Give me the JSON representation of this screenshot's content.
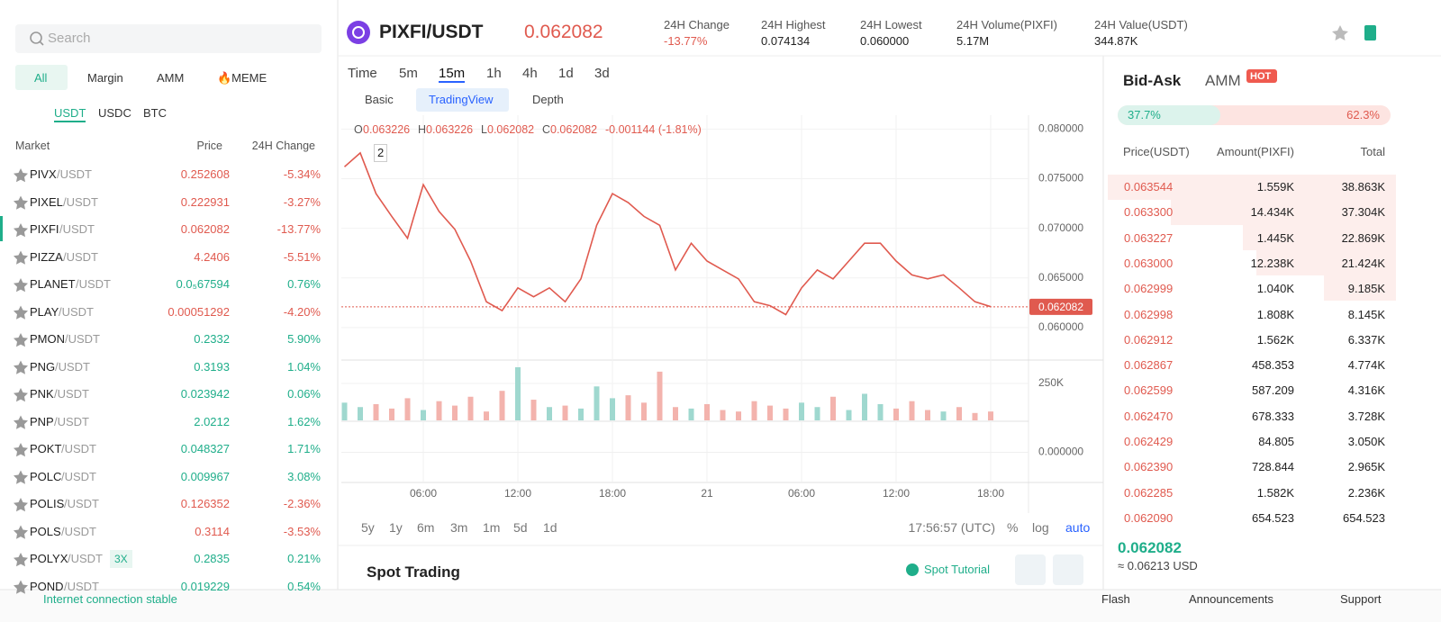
{
  "sidebar": {
    "search_placeholder": "Search",
    "tabs": [
      "All",
      "Margin",
      "AMM",
      "🔥MEME"
    ],
    "quote_tabs": [
      "USDT",
      "USDC",
      "BTC"
    ],
    "columns": [
      "Market",
      "Price",
      "24H Change"
    ],
    "rows": [
      {
        "base": "PIVX",
        "quote": "/USDT",
        "price": "0.252608",
        "change": "-5.34%"
      },
      {
        "base": "PIXEL",
        "quote": "/USDT",
        "price": "0.222931",
        "change": "-3.27%"
      },
      {
        "base": "PIXFI",
        "quote": "/USDT",
        "price": "0.062082",
        "change": "-13.77%"
      },
      {
        "base": "PIZZA",
        "quote": "/USDT",
        "price": "4.2406",
        "change": "-5.51%"
      },
      {
        "base": "PLANET",
        "quote": "/USDT",
        "price": "0.0₅67594",
        "change": "0.76%"
      },
      {
        "base": "PLAY",
        "quote": "/USDT",
        "price": "0.00051292",
        "change": "-4.20%"
      },
      {
        "base": "PMON",
        "quote": "/USDT",
        "price": "0.2332",
        "change": "5.90%"
      },
      {
        "base": "PNG",
        "quote": "/USDT",
        "price": "0.3193",
        "change": "1.04%"
      },
      {
        "base": "PNK",
        "quote": "/USDT",
        "price": "0.023942",
        "change": "0.06%"
      },
      {
        "base": "PNP",
        "quote": "/USDT",
        "price": "2.0212",
        "change": "1.62%"
      },
      {
        "base": "POKT",
        "quote": "/USDT",
        "price": "0.048327",
        "change": "1.71%"
      },
      {
        "base": "POLC",
        "quote": "/USDT",
        "price": "0.009967",
        "change": "3.08%"
      },
      {
        "base": "POLIS",
        "quote": "/USDT",
        "price": "0.126352",
        "change": "-2.36%"
      },
      {
        "base": "POLS",
        "quote": "/USDT",
        "price": "0.3114",
        "change": "-3.53%"
      },
      {
        "base": "POLYX",
        "quote": "/USDT",
        "badge": "3X",
        "price": "0.2835",
        "change": "0.21%"
      },
      {
        "base": "POND",
        "quote": "/USDT",
        "price": "0.019229",
        "change": "0.54%"
      }
    ]
  },
  "header": {
    "pair": "PIXFI/USDT",
    "price": "0.062082",
    "stats": [
      {
        "label": "24H Change",
        "value": "-13.77%"
      },
      {
        "label": "24H Highest",
        "value": "0.074134"
      },
      {
        "label": "24H Lowest",
        "value": "0.060000"
      },
      {
        "label": "24H Volume(PIXFI)",
        "value": "5.17M"
      },
      {
        "label": "24H Value(USDT)",
        "value": "344.87K"
      }
    ]
  },
  "toolbar": {
    "intervals": [
      "Time",
      "5m",
      "15m",
      "1h",
      "4h",
      "1d",
      "3d"
    ],
    "views": [
      "Basic",
      "TradingView",
      "Depth"
    ],
    "legend_badge": "2",
    "ohlc": [
      {
        "key": "O",
        "value": "0.063226"
      },
      {
        "key": "H",
        "value": "0.063226"
      },
      {
        "key": "L",
        "value": "0.062082"
      },
      {
        "key": "C",
        "value": "0.062082"
      }
    ],
    "ohlc_change": "-0.001144 (-1.81%)"
  },
  "chart_data": [
    {
      "type": "line",
      "color": "#e05a4f",
      "up_color": "#9fd8cf",
      "down_color": "#f3b3ad",
      "x": [
        1,
        2,
        3,
        4,
        5,
        6,
        7,
        8,
        9,
        10,
        11,
        12,
        13,
        14,
        15,
        16,
        17,
        18,
        19,
        20,
        21,
        22,
        23,
        24,
        25,
        26,
        27,
        28,
        29,
        30,
        31,
        32,
        33,
        34,
        35,
        36,
        37,
        38,
        39,
        40,
        41,
        42
      ],
      "values": [
        0.0762,
        0.0776,
        0.0735,
        0.0712,
        0.069,
        0.0744,
        0.0717,
        0.0699,
        0.0667,
        0.0626,
        0.0617,
        0.064,
        0.0631,
        0.064,
        0.0626,
        0.0649,
        0.0703,
        0.0735,
        0.0726,
        0.0712,
        0.0703,
        0.0658,
        0.0685,
        0.0667,
        0.0658,
        0.0649,
        0.0626,
        0.0622,
        0.0613,
        0.064,
        0.0658,
        0.0649,
        0.0667,
        0.0685,
        0.0685,
        0.0667,
        0.0653,
        0.0649,
        0.0653,
        0.064,
        0.0626,
        0.0621
      ],
      "last_price": 0.062082,
      "xlim": [
        0.8,
        44
      ],
      "xticks": [
        {
          "value": 6,
          "label": "06:00"
        },
        {
          "value": 12,
          "label": "12:00"
        },
        {
          "value": 18,
          "label": "18:00"
        },
        {
          "value": 24,
          "label": "21"
        },
        {
          "value": 30,
          "label": "06:00"
        },
        {
          "value": 36,
          "label": "12:00"
        },
        {
          "value": 42,
          "label": "18:00"
        }
      ],
      "ylim": [
        0.0569,
        0.0814
      ],
      "yticks": [
        {
          "value": 0.08,
          "label": "0.080000"
        },
        {
          "value": 0.075,
          "label": "0.075000"
        },
        {
          "value": 0.07,
          "label": "0.070000"
        },
        {
          "value": 0.065,
          "label": "0.065000"
        },
        {
          "value": 0.06,
          "label": "0.060000"
        }
      ],
      "grid": true
    },
    {
      "type": "bar",
      "values": [
        120000,
        90000,
        110000,
        80000,
        150000,
        70000,
        130000,
        100000,
        160000,
        60000,
        200000,
        360000,
        140000,
        90000,
        100000,
        80000,
        230000,
        150000,
        170000,
        120000,
        330000,
        90000,
        80000,
        110000,
        70000,
        60000,
        130000,
        100000,
        80000,
        120000,
        90000,
        160000,
        70000,
        180000,
        110000,
        80000,
        130000,
        70000,
        60000,
        90000,
        50000,
        60000
      ],
      "ylim": [
        0,
        408500
      ],
      "yticks": [
        {
          "value": 250000,
          "label": "250K"
        }
      ]
    },
    {
      "type": "indicator",
      "ylim": [
        -0.0015,
        0.0015
      ],
      "yticks": [
        {
          "value": 0,
          "label": "0.000000"
        }
      ]
    }
  ],
  "chart_footer": {
    "ranges": [
      "5y",
      "1y",
      "6m",
      "3m",
      "1m",
      "5d",
      "1d"
    ],
    "time": "17:56:57 (UTC)",
    "options": [
      "%",
      "log",
      "auto"
    ]
  },
  "spot": {
    "title": "Spot Trading",
    "tutorial": "Spot Tutorial"
  },
  "orderbook": {
    "tabs": [
      "Bid-Ask",
      "AMM"
    ],
    "badge": "HOT",
    "buy_ratio": "37.7%",
    "sell_ratio": "62.3%",
    "columns": [
      "Price(USDT)",
      "Amount(PIXFI)",
      "Total"
    ],
    "asks": [
      [
        "0.063544",
        "1.559K",
        "38.863K"
      ],
      [
        "0.063300",
        "14.434K",
        "37.304K"
      ],
      [
        "0.063227",
        "1.445K",
        "22.869K"
      ],
      [
        "0.063000",
        "12.238K",
        "21.424K"
      ],
      [
        "0.062999",
        "1.040K",
        "9.185K"
      ],
      [
        "0.062998",
        "1.808K",
        "8.145K"
      ],
      [
        "0.062912",
        "1.562K",
        "6.337K"
      ],
      [
        "0.062867",
        "458.353",
        "4.774K"
      ],
      [
        "0.062599",
        "587.209",
        "4.316K"
      ],
      [
        "0.062470",
        "678.333",
        "3.728K"
      ],
      [
        "0.062429",
        "84.805",
        "3.050K"
      ],
      [
        "0.062390",
        "728.844",
        "2.965K"
      ],
      [
        "0.062285",
        "1.582K",
        "2.236K"
      ],
      [
        "0.062090",
        "654.523",
        "654.523"
      ]
    ],
    "last": "0.062082",
    "last_usd": "≈ 0.06213 USD"
  },
  "footer": {
    "status": "Internet connection stable",
    "links": [
      "Flash",
      "Announcements",
      "Support"
    ]
  }
}
